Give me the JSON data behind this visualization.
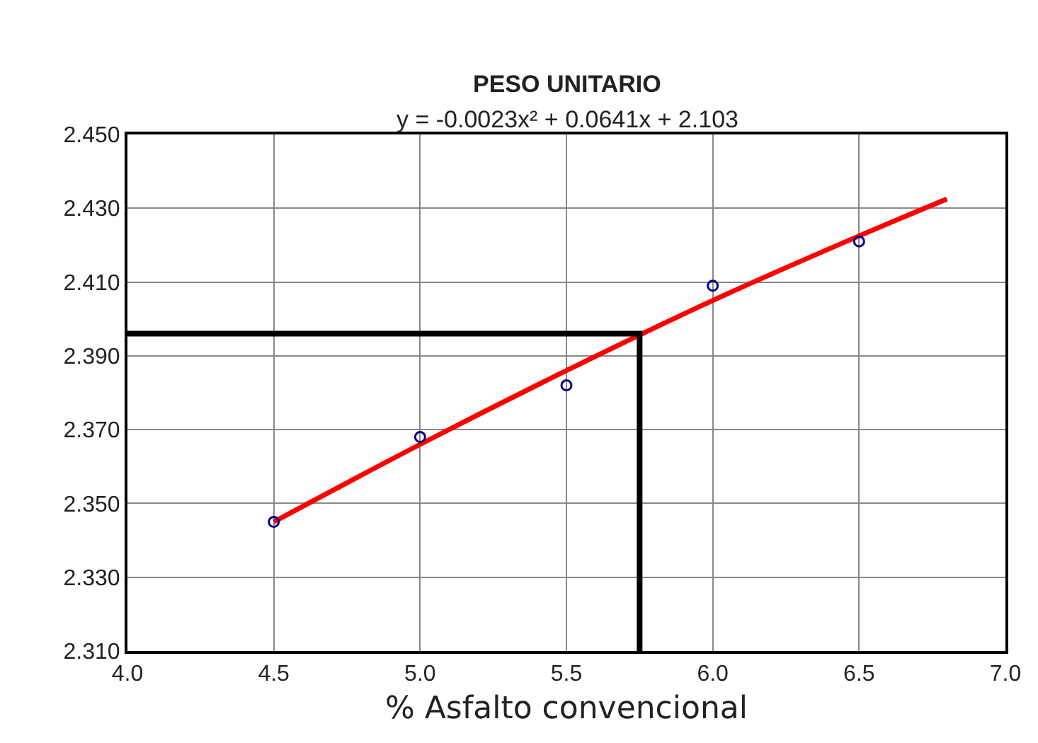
{
  "chart_data": {
    "type": "scatter",
    "title": "PESO UNITARIO",
    "subtitle": "y = -0.0023x² + 0.0641x + 2.103",
    "xlabel": "% Asfalto convencional",
    "xlim": [
      4.0,
      7.0
    ],
    "xticks": [
      {
        "value": 4.0,
        "label": "4.0"
      },
      {
        "value": 4.5,
        "label": "4.5"
      },
      {
        "value": 5.0,
        "label": "5.0"
      },
      {
        "value": 5.5,
        "label": "5.5"
      },
      {
        "value": 6.0,
        "label": "6.0"
      },
      {
        "value": 6.5,
        "label": "6.5"
      },
      {
        "value": 7.0,
        "label": "7.0"
      }
    ],
    "ylim": [
      2.31,
      2.45
    ],
    "yticks": [
      {
        "value": 2.31,
        "label": "2.310"
      },
      {
        "value": 2.33,
        "label": "2.330"
      },
      {
        "value": 2.35,
        "label": "2.350"
      },
      {
        "value": 2.37,
        "label": "2.370"
      },
      {
        "value": 2.39,
        "label": "2.390"
      },
      {
        "value": 2.41,
        "label": "2.410"
      },
      {
        "value": 2.43,
        "label": "2.430"
      },
      {
        "value": 2.45,
        "label": "2.450"
      }
    ],
    "grid": true,
    "series": [
      {
        "type": "line",
        "color": "#ff0000",
        "x": [
          4.5,
          5.0,
          5.5,
          6.0,
          6.5,
          6.8
        ],
        "values": [
          2.345,
          2.366,
          2.386,
          2.405,
          2.4225,
          2.4325
        ],
        "marker": "none",
        "line_style": "solid"
      },
      {
        "type": "line",
        "color": "#000000",
        "x": [
          4.0,
          5.75,
          5.75
        ],
        "values": [
          2.396,
          2.396,
          2.31
        ],
        "marker": "none",
        "line_style": "solid"
      },
      {
        "color": "#00008b",
        "x": [
          4.5,
          5.0,
          5.5,
          6.0,
          6.5
        ],
        "values": [
          2.345,
          2.368,
          2.382,
          2.409,
          2.421
        ],
        "marker": "circle"
      }
    ]
  }
}
